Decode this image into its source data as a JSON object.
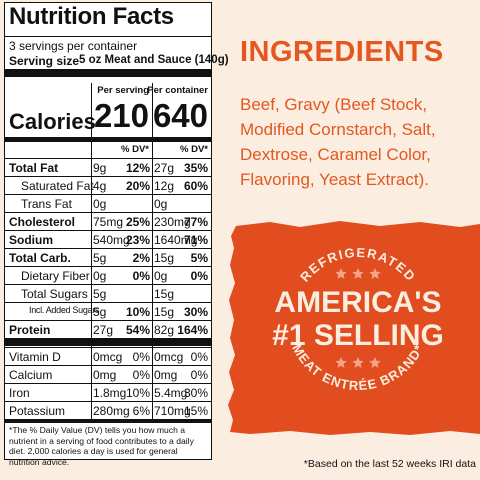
{
  "nutrition": {
    "title": "Nutrition Facts",
    "servings": "3 servings per container",
    "serving_size_label": "Serving size",
    "serving_size_value": "5 oz Meat and Sauce (140g)",
    "column_headers": [
      "Per serving",
      "Per container"
    ],
    "calories_label": "Calories",
    "calories": [
      "210",
      "640"
    ],
    "dv_headers": [
      "% DV*",
      "% DV*"
    ],
    "rows": [
      [
        "Total Fat",
        "9g",
        "12%",
        "27g",
        "35%"
      ],
      [
        "Saturated Fat",
        "4g",
        "20%",
        "12g",
        "60%"
      ],
      [
        "Trans Fat",
        "0g",
        null,
        "0g",
        null
      ],
      [
        "Cholesterol",
        "75mg",
        "25%",
        "230mg",
        "77%"
      ],
      [
        "Sodium",
        "540mg",
        "23%",
        "1640mg",
        "71%"
      ],
      [
        "Total Carb.",
        "5g",
        "2%",
        "15g",
        "5%"
      ],
      [
        "Dietary Fiber",
        "0g",
        "0%",
        "0g",
        "0%"
      ],
      [
        "Total Sugars",
        "5g",
        null,
        "15g",
        null
      ],
      [
        "Incl. Added Sugars",
        "5g",
        "10%",
        "15g",
        "30%"
      ],
      [
        "Protein",
        "27g",
        "54%",
        "82g",
        "164%"
      ]
    ],
    "vitamins": [
      [
        "Vitamin D",
        "0mcg",
        "0%",
        "0mcg",
        "0%"
      ],
      [
        "Calcium",
        "0mg",
        "0%",
        "0mg",
        "0%"
      ],
      [
        "Iron",
        "1.8mg",
        "10%",
        "5.4mg",
        "30%"
      ],
      [
        "Potassium",
        "280mg",
        "6%",
        "710mg",
        "15%"
      ]
    ],
    "footnote": "*The % Daily Value (DV) tells you how much a nutrient in a serving of food contributes to a daily diet. 2,000 calories a day is used for general nutrition advice."
  },
  "ingredients": {
    "heading": "INGREDIENTS",
    "text": "Beef, Gravy (Beef Stock, Modified Cornstarch, Salt, Dextrose, Caramel Color, Flavoring, Yeast Extract)."
  },
  "banner": {
    "top_arc": "REFRIGERATED",
    "line1": "AMERICA'S",
    "line2": "#1 SELLING",
    "bottom_arc": "MEAT ENTRÉE BRAND*"
  },
  "disclaimer": "*Based on the last 52 weeks IRI data"
}
